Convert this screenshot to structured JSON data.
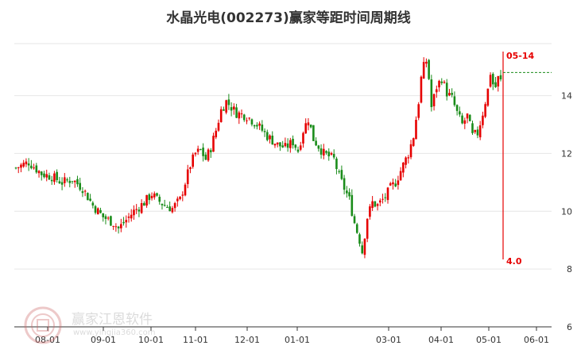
{
  "chart_data": {
    "type": "candlestick",
    "title": "水晶光电(002273)赢家等距时间周期线",
    "ylim": [
      6,
      15.8
    ],
    "y_ticks": [
      14,
      12,
      10,
      8,
      6
    ],
    "x_ticks": [
      "08-01",
      "09-01",
      "10-01",
      "11-01",
      "12-01",
      "01-01",
      "03-01",
      "04-01",
      "05-01",
      "06-01"
    ],
    "grid": true,
    "colors": {
      "up": "#e60000",
      "down": "#1a8c1a",
      "grid": "#e6e6e6",
      "marker": "#e60000"
    },
    "series": [
      {
        "close_path": [
          [
            0,
            11.5
          ],
          [
            5,
            11.7
          ],
          [
            10,
            11.3
          ],
          [
            14,
            11.2
          ],
          [
            18,
            11.0
          ],
          [
            22,
            11.1
          ],
          [
            26,
            10.8
          ],
          [
            30,
            10.2
          ],
          [
            34,
            9.8
          ],
          [
            38,
            9.6
          ],
          [
            40,
            9.4
          ],
          [
            43,
            9.7
          ],
          [
            46,
            10.0
          ],
          [
            50,
            10.3
          ],
          [
            53,
            10.6
          ],
          [
            55,
            10.4
          ],
          [
            58,
            10.2
          ],
          [
            61,
            10.1
          ],
          [
            64,
            10.4
          ],
          [
            66,
            11.0
          ],
          [
            68,
            11.6
          ],
          [
            70,
            12.0
          ],
          [
            72,
            12.1
          ],
          [
            74,
            11.8
          ],
          [
            76,
            12.2
          ],
          [
            78,
            12.8
          ],
          [
            80,
            13.5
          ],
          [
            82,
            13.8
          ],
          [
            84,
            13.6
          ],
          [
            86,
            13.4
          ],
          [
            90,
            13.3
          ],
          [
            94,
            13.0
          ],
          [
            98,
            12.6
          ],
          [
            102,
            12.3
          ],
          [
            105,
            12.2
          ],
          [
            108,
            12.4
          ],
          [
            110,
            12.1
          ],
          [
            112,
            12.8
          ],
          [
            114,
            13.2
          ],
          [
            116,
            12.5
          ],
          [
            120,
            12.0
          ],
          [
            124,
            11.8
          ],
          [
            126,
            11.2
          ],
          [
            128,
            10.8
          ],
          [
            130,
            10.4
          ],
          [
            132,
            9.6
          ],
          [
            134,
            9.0
          ],
          [
            135,
            8.6
          ],
          [
            137,
            9.8
          ],
          [
            139,
            10.3
          ],
          [
            141,
            10.2
          ],
          [
            144,
            10.5
          ],
          [
            146,
            10.8
          ],
          [
            148,
            11.0
          ],
          [
            151,
            11.6
          ],
          [
            153,
            12.0
          ],
          [
            155,
            12.6
          ],
          [
            157,
            13.8
          ],
          [
            158,
            14.6
          ],
          [
            159,
            15.0
          ],
          [
            160,
            15.2
          ],
          [
            161,
            14.6
          ],
          [
            162,
            13.6
          ],
          [
            164,
            14.3
          ],
          [
            166,
            14.6
          ],
          [
            168,
            14.1
          ],
          [
            170,
            13.9
          ],
          [
            172,
            13.4
          ],
          [
            174,
            13.0
          ],
          [
            176,
            13.3
          ],
          [
            178,
            12.6
          ],
          [
            180,
            12.7
          ],
          [
            182,
            13.4
          ],
          [
            184,
            14.2
          ],
          [
            185,
            14.8
          ],
          [
            186,
            14.4
          ],
          [
            187,
            14.3
          ],
          [
            188,
            14.6
          ],
          [
            189,
            14.5
          ]
        ],
        "day_span": 189,
        "date_start": "2023-07-17",
        "last_date": "2024-05-14"
      }
    ],
    "annotations": [
      {
        "label": "05-14",
        "value": null
      },
      {
        "label": "4.0",
        "value": 4.0
      },
      {
        "horizontal_line": 14.8
      }
    ]
  },
  "watermark": {
    "text": "赢家江恩软件",
    "url": "www.yingjia360.com"
  }
}
